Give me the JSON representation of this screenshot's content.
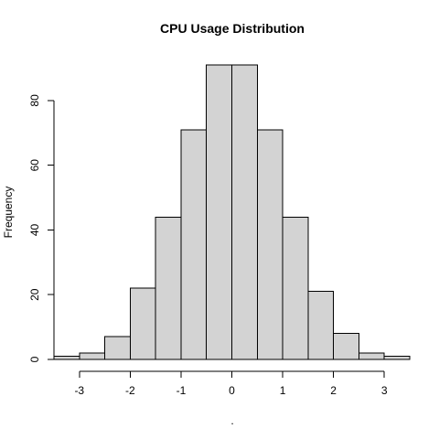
{
  "chart_data": {
    "type": "bar",
    "title": "CPU Usage Distribution",
    "xlabel": ".",
    "ylabel": "Frequency",
    "bins": [
      {
        "from": -3.5,
        "to": -3.0,
        "count": 1
      },
      {
        "from": -3.0,
        "to": -2.5,
        "count": 2
      },
      {
        "from": -2.5,
        "to": -2.0,
        "count": 7
      },
      {
        "from": -2.0,
        "to": -1.5,
        "count": 22
      },
      {
        "from": -1.5,
        "to": -1.0,
        "count": 44
      },
      {
        "from": -1.0,
        "to": -0.5,
        "count": 71
      },
      {
        "from": -0.5,
        "to": 0.0,
        "count": 91
      },
      {
        "from": 0.0,
        "to": 0.5,
        "count": 91
      },
      {
        "from": 0.5,
        "to": 1.0,
        "count": 71
      },
      {
        "from": 1.0,
        "to": 1.5,
        "count": 44
      },
      {
        "from": 1.5,
        "to": 2.0,
        "count": 21
      },
      {
        "from": 2.0,
        "to": 2.5,
        "count": 8
      },
      {
        "from": 2.5,
        "to": 3.0,
        "count": 2
      },
      {
        "from": 3.0,
        "to": 3.5,
        "count": 1
      }
    ],
    "x_ticks": [
      -3,
      -2,
      -1,
      0,
      1,
      2,
      3
    ],
    "x_tick_labels": [
      "-3",
      "-2",
      "-1",
      "0",
      "1",
      "2",
      "3"
    ],
    "y_ticks": [
      0,
      20,
      40,
      60,
      80
    ],
    "y_tick_labels": [
      "0",
      "20",
      "40",
      "60",
      "80"
    ],
    "xlim": [
      -3.5,
      3.5
    ],
    "ylim": [
      0,
      91
    ],
    "bar_fill": "#d3d3d3",
    "bar_stroke": "#000000",
    "grid": false
  }
}
